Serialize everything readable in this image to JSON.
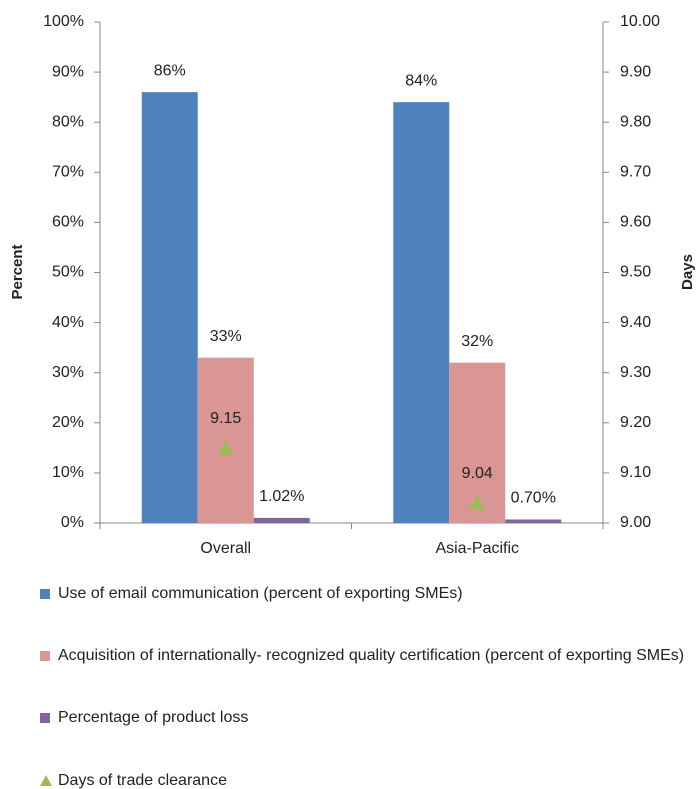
{
  "chart_data": {
    "type": "bar",
    "categories": [
      "Overall",
      "Asia-Pacific"
    ],
    "y_label": "Percent",
    "y2_label": "Days",
    "ylim": [
      0,
      100
    ],
    "yticks": [
      {
        "value": 0,
        "label": "0%"
      },
      {
        "value": 10,
        "label": "10%"
      },
      {
        "value": 20,
        "label": "20%"
      },
      {
        "value": 30,
        "label": "30%"
      },
      {
        "value": 40,
        "label": "40%"
      },
      {
        "value": 50,
        "label": "50%"
      },
      {
        "value": 60,
        "label": "60%"
      },
      {
        "value": 70,
        "label": "70%"
      },
      {
        "value": 80,
        "label": "80%"
      },
      {
        "value": 90,
        "label": "90%"
      },
      {
        "value": 100,
        "label": "100%"
      }
    ],
    "y2lim": [
      9,
      10
    ],
    "y2ticks": [
      {
        "value": 9,
        "label": "9.00"
      },
      {
        "value": 9.1,
        "label": "9.10"
      },
      {
        "value": 9.2,
        "label": "9.20"
      },
      {
        "value": 9.3,
        "label": "9.30"
      },
      {
        "value": 9.4,
        "label": "9.40"
      },
      {
        "value": 9.5,
        "label": "9.50"
      },
      {
        "value": 9.6,
        "label": "9.60"
      },
      {
        "value": 9.7,
        "label": "9.70"
      },
      {
        "value": 9.8,
        "label": "9.80"
      },
      {
        "value": 9.9,
        "label": "9.90"
      },
      {
        "value": 10,
        "label": "10.00"
      }
    ],
    "legend_position": "bottom",
    "series": [
      {
        "name": "Use of email communication (percent of exporting SMEs)",
        "color": "#4f81bd",
        "type": "bar",
        "values": [
          86,
          84
        ],
        "value_labels": [
          "86%",
          "84%"
        ]
      },
      {
        "name": "Acquisition of internationally- recognized quality certification (percent of exporting SMEs)",
        "color": "#d99694",
        "type": "bar",
        "values": [
          33,
          32
        ],
        "value_labels": [
          "33%",
          "32%"
        ]
      },
      {
        "name": "Percentage of product loss",
        "color": "#8064a2",
        "type": "bar",
        "values": [
          1.02,
          0.7
        ],
        "value_labels": [
          "1.02%",
          "0.70%"
        ]
      },
      {
        "name": "Days of trade clearance",
        "color": "#9bbb59",
        "type": "scatter",
        "axis": "y2",
        "values": [
          9.15,
          9.04
        ]
      }
    ]
  }
}
